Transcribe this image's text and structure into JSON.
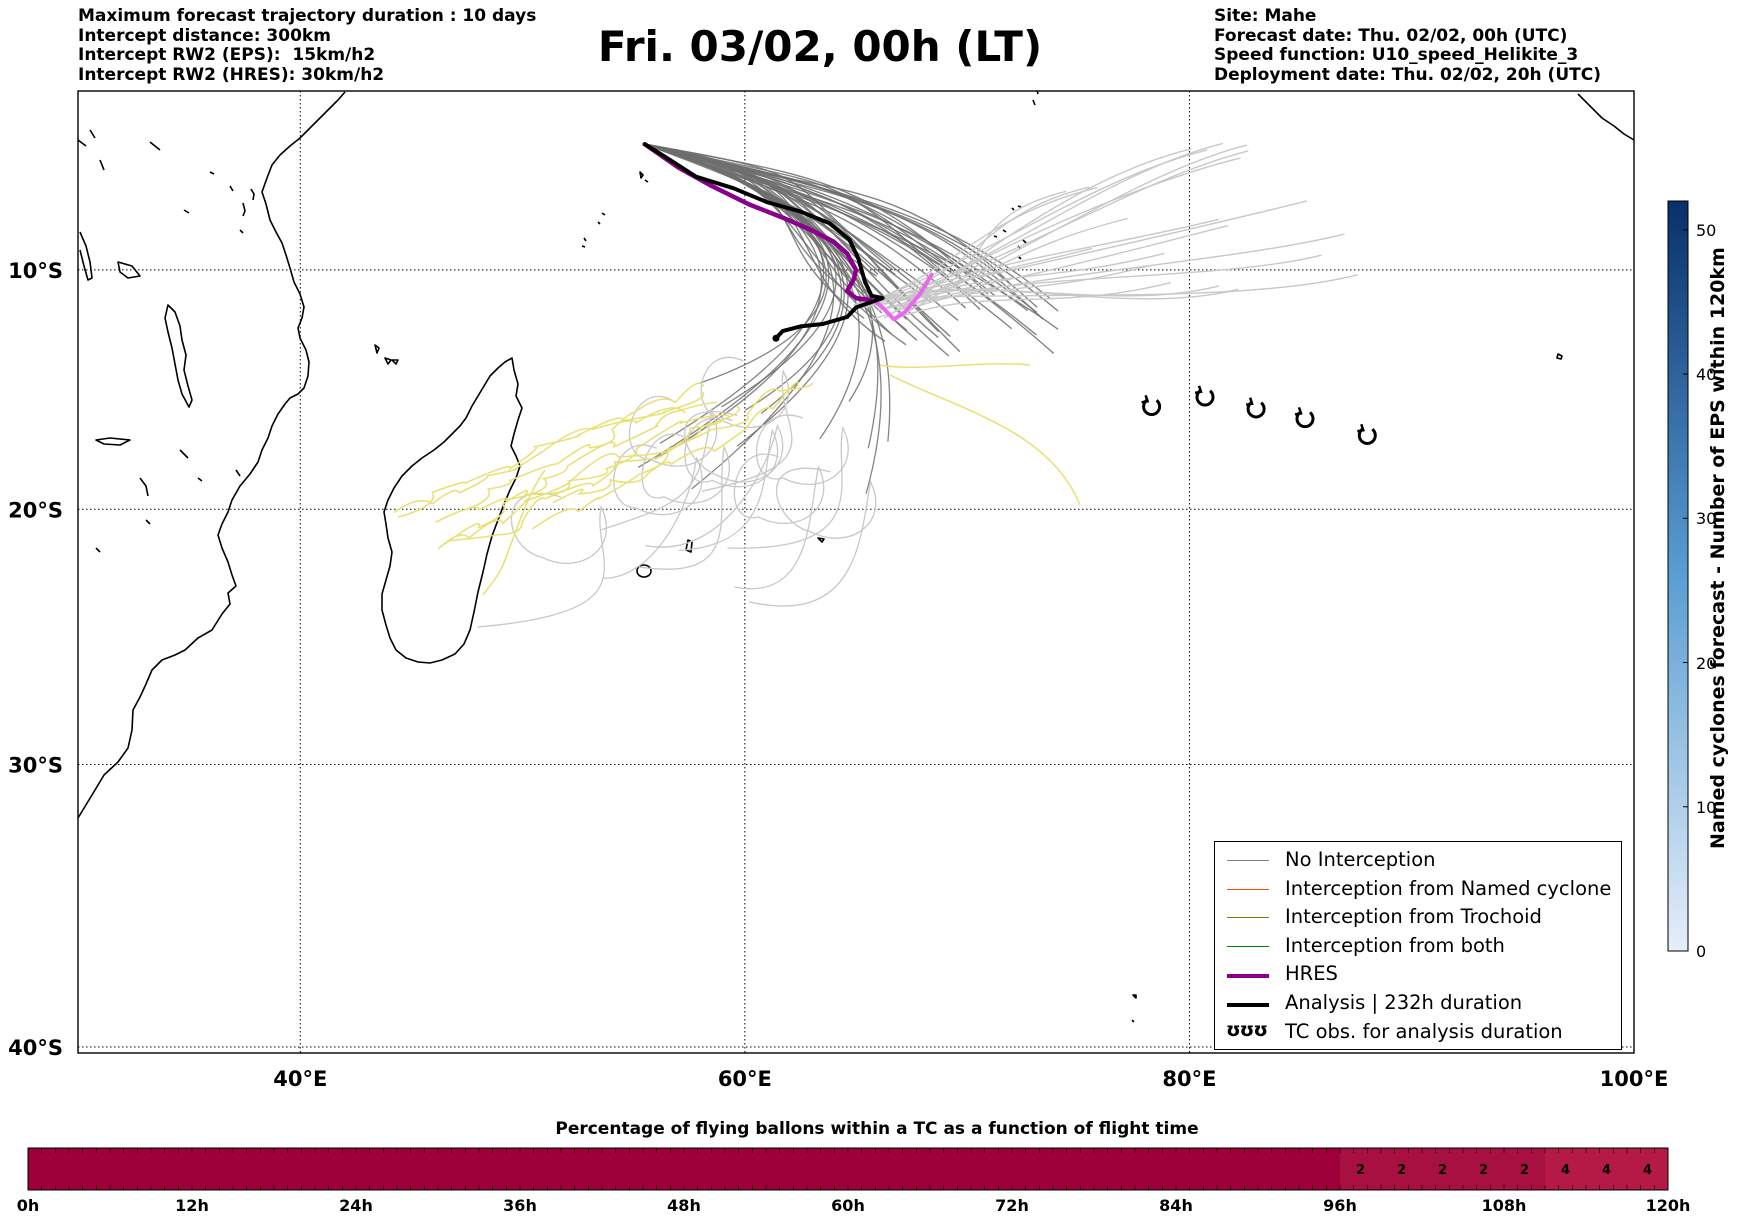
{
  "header_left": [
    "Maximum forecast trajectory duration : 10 days",
    "Intercept distance: 300km",
    "Intercept RW2 (EPS):  15km/h2",
    "Intercept RW2 (HRES): 30km/h2"
  ],
  "title": "Fri. 03/02, 00h (LT)",
  "header_right": [
    "Site: Mahe",
    "Forecast date: Thu. 02/02, 00h (UTC)",
    "Speed function: U10_speed_Helikite_3",
    "Deployment date: Thu. 02/02, 20h (UTC)"
  ],
  "map": {
    "lon_range": [
      30,
      100
    ],
    "lat_range": [
      -40.2,
      -2.3
    ],
    "lon_ticks": [
      {
        "value": 40,
        "label": "40°E"
      },
      {
        "value": 60,
        "label": "60°E"
      },
      {
        "value": 80,
        "label": "80°E"
      },
      {
        "value": 100,
        "label": "100°E"
      }
    ],
    "lat_ticks": [
      {
        "value": -10,
        "label": "10°S"
      },
      {
        "value": -20,
        "label": "20°S"
      },
      {
        "value": -30,
        "label": "30°S"
      },
      {
        "value": -40,
        "label": "40°S"
      }
    ],
    "grid": "dotted",
    "hres_color": "#8b008b",
    "hres_late_color": "#ee66ee",
    "analysis_color": "#000000",
    "analysis_track": [
      [
        55.5,
        -4.6
      ],
      [
        56.5,
        -5.2
      ],
      [
        57.8,
        -6.0
      ],
      [
        59.5,
        -6.5
      ],
      [
        61.0,
        -7.1
      ],
      [
        62.5,
        -7.5
      ],
      [
        63.8,
        -8.0
      ],
      [
        64.7,
        -8.7
      ],
      [
        65.1,
        -9.5
      ],
      [
        65.4,
        -10.5
      ],
      [
        65.7,
        -11.1
      ],
      [
        66.2,
        -11.2
      ],
      [
        65.6,
        -11.4
      ],
      [
        65.0,
        -11.6
      ],
      [
        64.6,
        -12.0
      ],
      [
        63.5,
        -12.3
      ],
      [
        62.5,
        -12.4
      ],
      [
        61.7,
        -12.6
      ],
      [
        61.4,
        -12.9
      ]
    ],
    "hres_track": [
      [
        55.5,
        -4.6
      ],
      [
        57.0,
        -5.6
      ],
      [
        58.5,
        -6.4
      ],
      [
        60.2,
        -7.2
      ],
      [
        61.8,
        -7.8
      ],
      [
        63.0,
        -8.3
      ],
      [
        64.0,
        -8.8
      ],
      [
        64.6,
        -9.3
      ],
      [
        65.0,
        -10.0
      ],
      [
        64.9,
        -10.4
      ],
      [
        64.6,
        -10.9
      ],
      [
        65.0,
        -11.2
      ],
      [
        65.8,
        -11.3
      ]
    ],
    "hres_late_track": [
      [
        65.8,
        -11.3
      ],
      [
        66.2,
        -11.6
      ],
      [
        66.7,
        -12.1
      ],
      [
        67.2,
        -11.8
      ],
      [
        67.9,
        -11.0
      ],
      [
        68.4,
        -10.2
      ]
    ],
    "tc_obs": [
      [
        78.3,
        -15.8
      ],
      [
        80.7,
        -15.4
      ],
      [
        83.0,
        -15.9
      ],
      [
        85.2,
        -16.3
      ],
      [
        88.0,
        -17.0
      ]
    ]
  },
  "colorbar_right": {
    "label": "Named cyclones forecast - Number of EPS within 120km",
    "ticks": [
      "0",
      "10",
      "20",
      "30",
      "40",
      "50"
    ],
    "values": [
      0,
      10,
      20,
      30,
      40,
      50
    ],
    "max": 52,
    "color_low": "#e6eef9",
    "color_high": "#08306b"
  },
  "legend": [
    {
      "label": "No Interception",
      "color": "#808080",
      "kind": "line"
    },
    {
      "label": "Interception from Named cyclone",
      "color": "#ff4500",
      "kind": "line"
    },
    {
      "label": "Interception from Trochoid",
      "color": "#808000",
      "kind": "line"
    },
    {
      "label": "Interception from both",
      "color": "#008000",
      "kind": "line"
    },
    {
      "label": "HRES",
      "color": "#8b008b",
      "kind": "thick"
    },
    {
      "label": "Analysis | 232h duration",
      "color": "#000000",
      "kind": "thick"
    },
    {
      "label": "TC obs. for analysis duration",
      "color": "#000000",
      "kind": "tc",
      "symbol": "ʊʊʊ"
    }
  ],
  "bottom_bar": {
    "title": "Percentage of flying ballons within a TC as a function of flight time",
    "hours_max": 120,
    "tick_labels": [
      "0h",
      "12h",
      "24h",
      "36h",
      "48h",
      "60h",
      "72h",
      "84h",
      "96h",
      "108h",
      "120h"
    ],
    "tick_hours": [
      0,
      12,
      24,
      36,
      48,
      60,
      72,
      84,
      96,
      108,
      120
    ],
    "base_color": "#9e003a",
    "cells": [
      {
        "from": 96,
        "to": 99,
        "value": "2",
        "color": "#a8103f"
      },
      {
        "from": 99,
        "to": 102,
        "value": "2",
        "color": "#a8103f"
      },
      {
        "from": 102,
        "to": 105,
        "value": "2",
        "color": "#a8103f"
      },
      {
        "from": 105,
        "to": 108,
        "value": "2",
        "color": "#a8103f"
      },
      {
        "from": 108,
        "to": 111,
        "value": "2",
        "color": "#a8103f"
      },
      {
        "from": 111,
        "to": 114,
        "value": "4",
        "color": "#b51a46"
      },
      {
        "from": 114,
        "to": 117,
        "value": "4",
        "color": "#b51a46"
      },
      {
        "from": 117,
        "to": 120,
        "value": "4",
        "color": "#b51a46"
      }
    ]
  }
}
